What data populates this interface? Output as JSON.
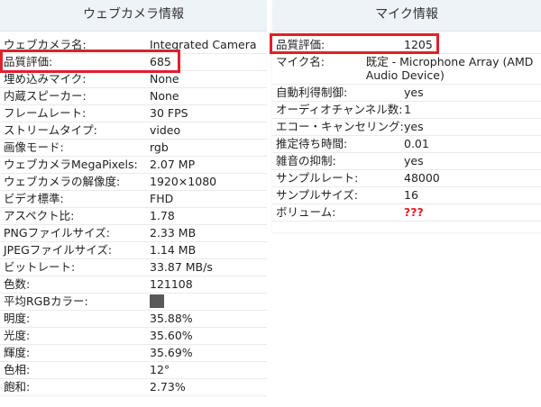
{
  "webcam": {
    "title": "ウェブカメラ情報",
    "rows": [
      {
        "label": "ウェブカメラ名:",
        "value": "Integrated Camera"
      },
      {
        "label": "品質評価:",
        "value": "685"
      },
      {
        "label": "埋め込みマイク:",
        "value": "None"
      },
      {
        "label": "内蔵スピーカー:",
        "value": "None"
      },
      {
        "label": "フレームレート:",
        "value": "30 FPS"
      },
      {
        "label": "ストリームタイプ:",
        "value": "video"
      },
      {
        "label": "画像モード:",
        "value": "rgb"
      },
      {
        "label": "ウェブカメラMegaPixels:",
        "value": "2.07 MP"
      },
      {
        "label": "ウェブカメラの解像度:",
        "value": "1920×1080"
      },
      {
        "label": "ビデオ標準:",
        "value": "FHD"
      },
      {
        "label": "アスペクト比:",
        "value": "1.78"
      },
      {
        "label": "PNGファイルサイズ:",
        "value": "2.33 MB"
      },
      {
        "label": "JPEGファイルサイズ:",
        "value": "1.14 MB"
      },
      {
        "label": "ビットレート:",
        "value": "33.87 MB/s"
      },
      {
        "label": "色数:",
        "value": "121108"
      },
      {
        "label": "平均RGBカラー:",
        "swatch_color": "#595959"
      },
      {
        "label": "明度:",
        "value": "35.88%"
      },
      {
        "label": "光度:",
        "value": "35.60%"
      },
      {
        "label": "輝度:",
        "value": "35.69%"
      },
      {
        "label": "色相:",
        "value": "12°"
      },
      {
        "label": "飽和:",
        "value": "2.73%"
      }
    ]
  },
  "mic": {
    "title": "マイク情報",
    "rows": [
      {
        "label": "品質評価:",
        "value": "1205"
      },
      {
        "label": "マイク名:",
        "value": "既定 - Microphone Array (AMD Audio Device)"
      },
      {
        "label": "自動利得制御:",
        "value": "yes"
      },
      {
        "label": "オーディオチャンネル数:",
        "value": "1"
      },
      {
        "label": "エコー・キャンセリング:",
        "value": "yes"
      },
      {
        "label": "推定待ち時間:",
        "value": "0.01"
      },
      {
        "label": "雑音の抑制:",
        "value": "yes"
      },
      {
        "label": "サンプルレート:",
        "value": "48000"
      },
      {
        "label": "サンプルサイズ:",
        "value": "16"
      },
      {
        "label": "ボリューム:",
        "value": "???"
      }
    ]
  },
  "colors": {
    "highlight": "#e0202a",
    "header_bg": "#eef3f8"
  }
}
